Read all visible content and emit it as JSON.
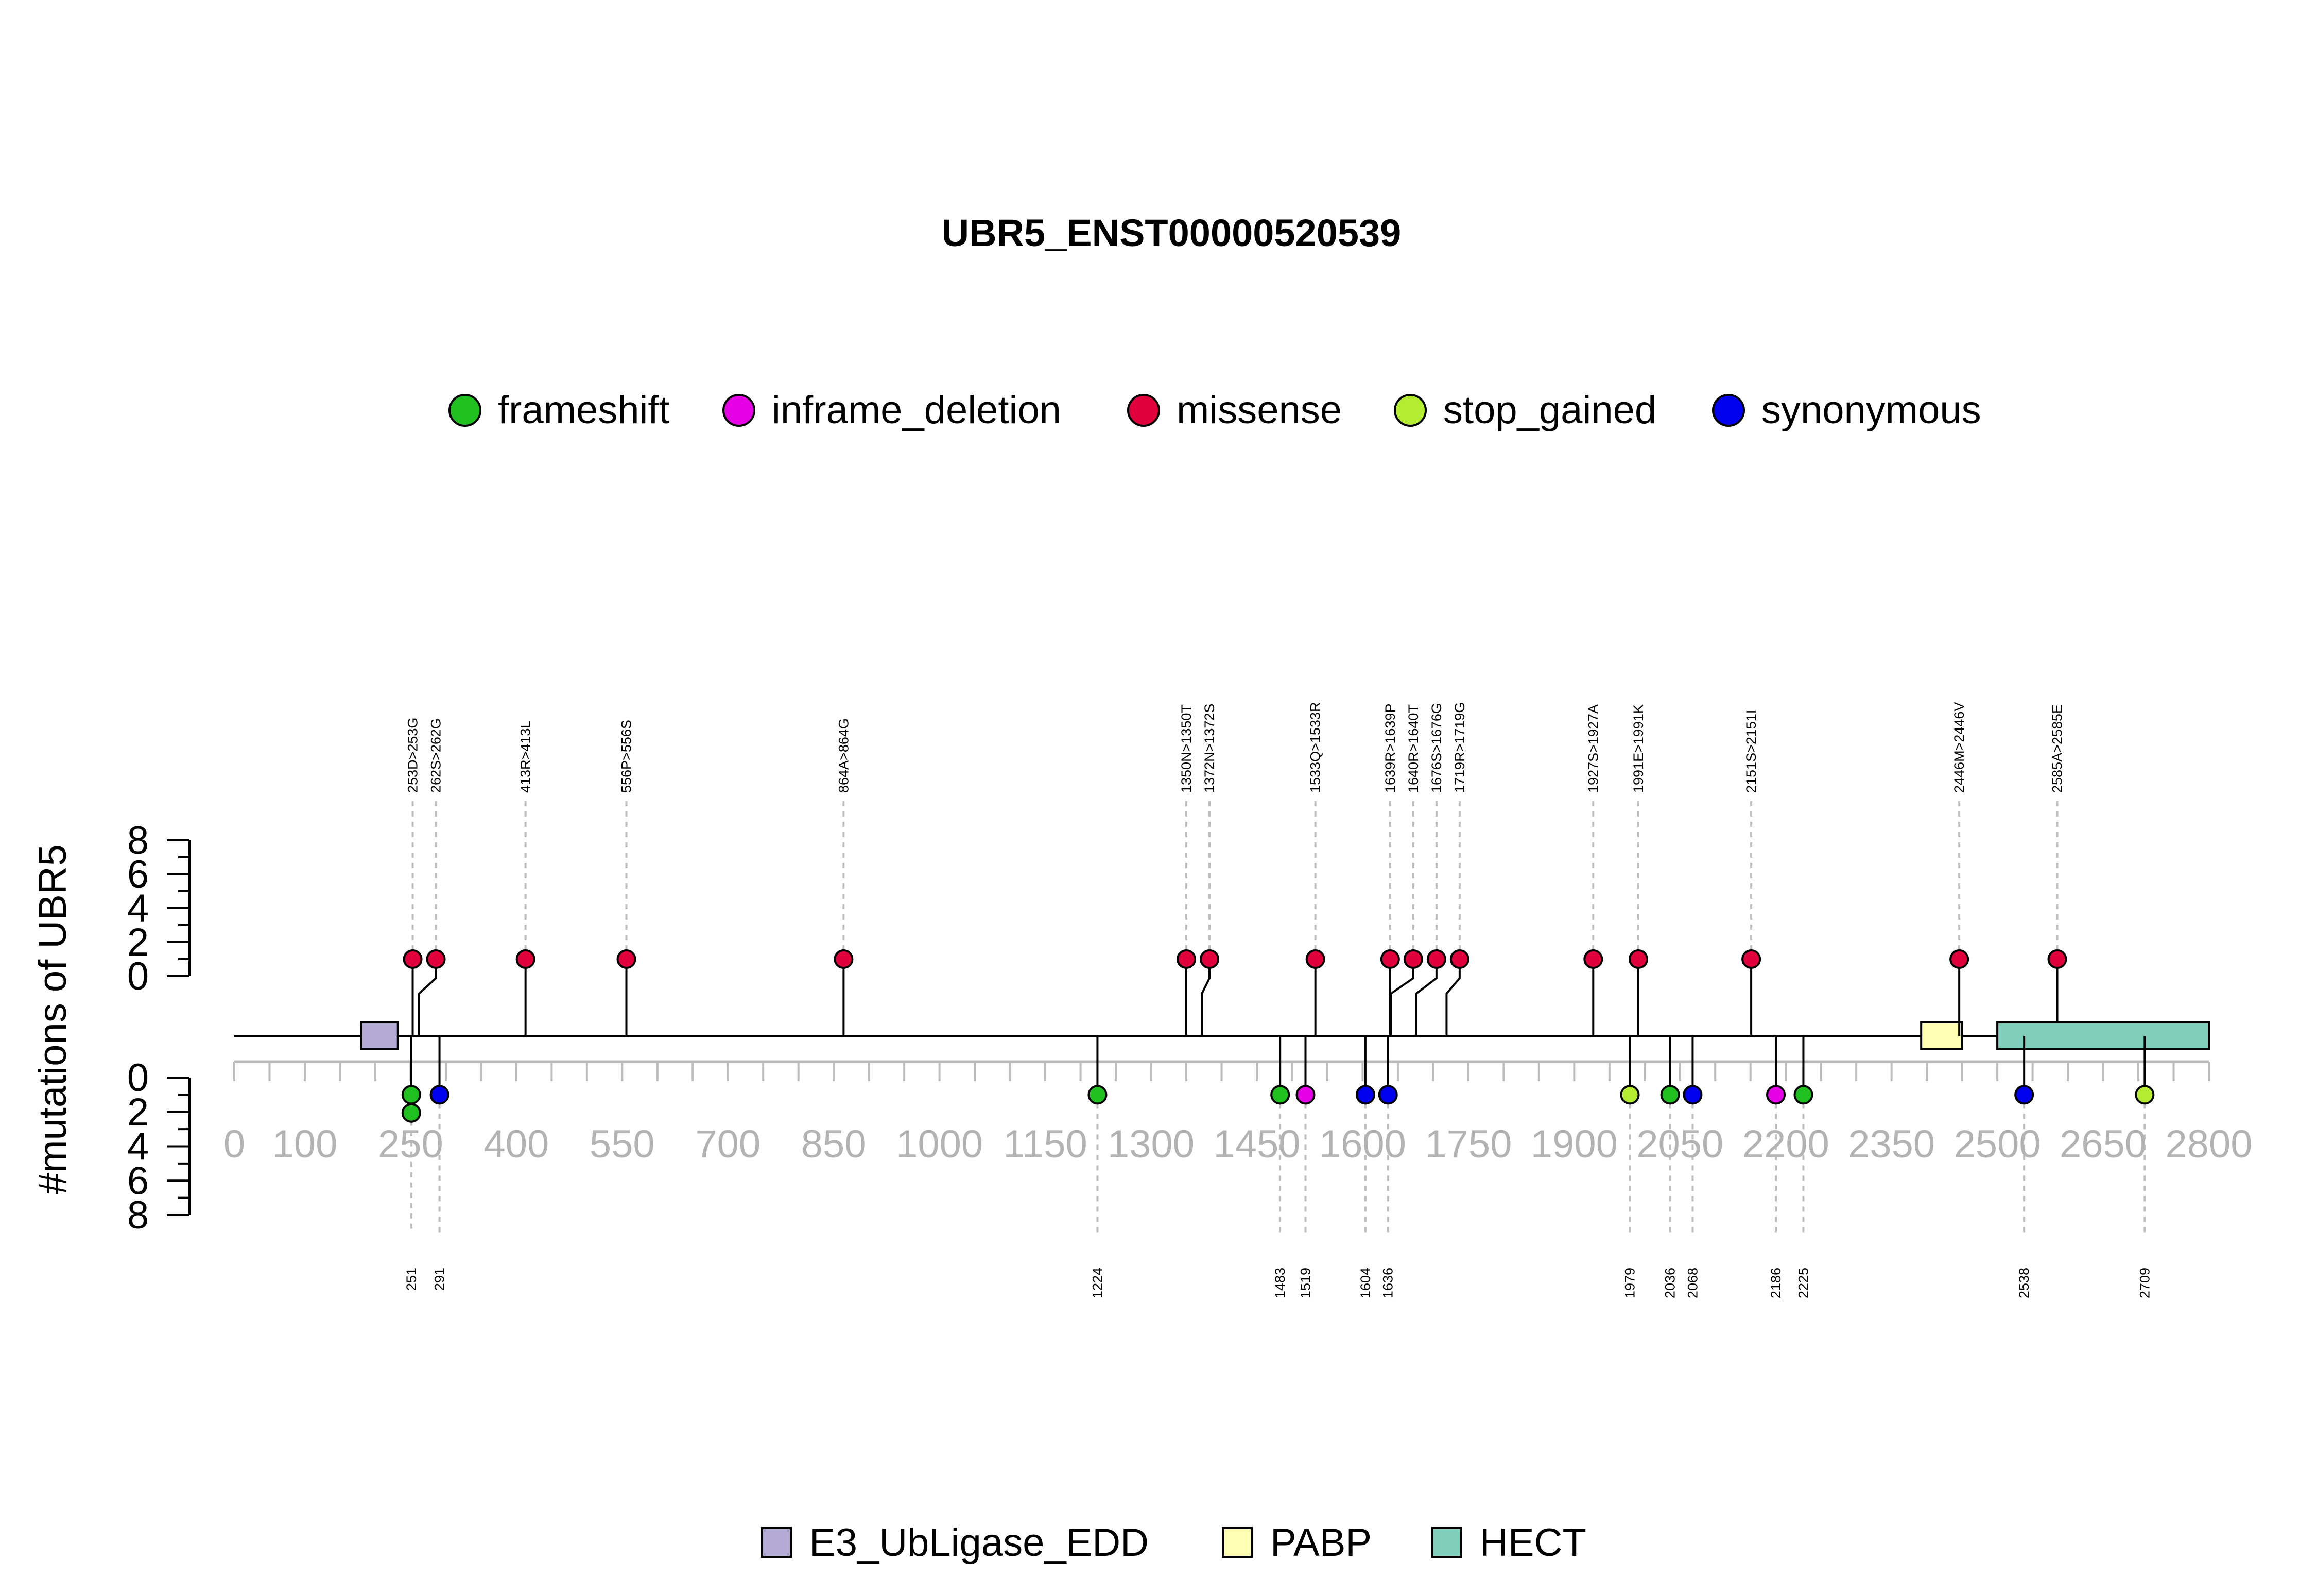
{
  "chart_data": {
    "type": "lollipop",
    "title": "UBR5_ENST00000520539",
    "ylabel": "#mutations of UBR5",
    "xlim": [
      0,
      2800
    ],
    "x_ticks": [
      0,
      100,
      250,
      400,
      550,
      700,
      850,
      1000,
      1150,
      1300,
      1450,
      1600,
      1750,
      1900,
      2050,
      2200,
      2350,
      2500,
      2650,
      2800
    ],
    "y_ticks": [
      0,
      2,
      4,
      6,
      8
    ],
    "ylim": [
      0,
      8
    ],
    "mutation_types": [
      {
        "name": "frameshift",
        "color": "#1fc01f"
      },
      {
        "name": "inframe_deletion",
        "color": "#e600e6"
      },
      {
        "name": "missense",
        "color": "#e0003c"
      },
      {
        "name": "stop_gained",
        "color": "#b4ec32"
      },
      {
        "name": "synonymous",
        "color": "#0000ee"
      }
    ],
    "upper_mutations": [
      {
        "label": "253D>253G",
        "position": 253,
        "count": 1,
        "type": "missense"
      },
      {
        "label": "262S>262G",
        "position": 262,
        "count": 1,
        "type": "missense"
      },
      {
        "label": "413R>413L",
        "position": 413,
        "count": 1,
        "type": "missense"
      },
      {
        "label": "556P>556S",
        "position": 556,
        "count": 1,
        "type": "missense"
      },
      {
        "label": "864A>864G",
        "position": 864,
        "count": 1,
        "type": "missense"
      },
      {
        "label": "1350N>1350T",
        "position": 1350,
        "count": 1,
        "type": "missense"
      },
      {
        "label": "1372N>1372S",
        "position": 1372,
        "count": 1,
        "type": "missense"
      },
      {
        "label": "1533Q>1533R",
        "position": 1533,
        "count": 1,
        "type": "missense"
      },
      {
        "label": "1639R>1639P",
        "position": 1639,
        "count": 1,
        "type": "missense"
      },
      {
        "label": "1640R>1640T",
        "position": 1640,
        "count": 1,
        "type": "missense"
      },
      {
        "label": "1676S>1676G",
        "position": 1676,
        "count": 1,
        "type": "missense"
      },
      {
        "label": "1719R>1719G",
        "position": 1719,
        "count": 1,
        "type": "missense"
      },
      {
        "label": "1927S>1927A",
        "position": 1927,
        "count": 1,
        "type": "missense"
      },
      {
        "label": "1991E>1991K",
        "position": 1991,
        "count": 1,
        "type": "missense"
      },
      {
        "label": "2151S>2151I",
        "position": 2151,
        "count": 1,
        "type": "missense"
      },
      {
        "label": "2446M>2446V",
        "position": 2446,
        "count": 1,
        "type": "missense"
      },
      {
        "label": "2585A>2585E",
        "position": 2585,
        "count": 1,
        "type": "missense"
      }
    ],
    "lower_mutations": [
      {
        "label": "251",
        "position": 251,
        "count": 2,
        "type": "frameshift"
      },
      {
        "label": "291",
        "position": 291,
        "count": 1,
        "type": "synonymous"
      },
      {
        "label": "1224",
        "position": 1224,
        "count": 1,
        "type": "frameshift"
      },
      {
        "label": "1483",
        "position": 1483,
        "count": 1,
        "type": "frameshift"
      },
      {
        "label": "1519",
        "position": 1519,
        "count": 1,
        "type": "inframe_deletion"
      },
      {
        "label": "1604",
        "position": 1604,
        "count": 1,
        "type": "synonymous"
      },
      {
        "label": "1636",
        "position": 1636,
        "count": 1,
        "type": "synonymous"
      },
      {
        "label": "1979",
        "position": 1979,
        "count": 1,
        "type": "stop_gained"
      },
      {
        "label": "2036",
        "position": 2036,
        "count": 1,
        "type": "frameshift"
      },
      {
        "label": "2068",
        "position": 2068,
        "count": 1,
        "type": "synonymous"
      },
      {
        "label": "2186",
        "position": 2186,
        "count": 1,
        "type": "inframe_deletion"
      },
      {
        "label": "2225",
        "position": 2225,
        "count": 1,
        "type": "frameshift"
      },
      {
        "label": "2538",
        "position": 2538,
        "count": 1,
        "type": "synonymous"
      },
      {
        "label": "2709",
        "position": 2709,
        "count": 1,
        "type": "stop_gained"
      }
    ],
    "domains": [
      {
        "name": "E3_UbLigase_EDD",
        "start": 180,
        "end": 232,
        "color": "#b3aad6"
      },
      {
        "name": "PABP",
        "start": 2392,
        "end": 2450,
        "color": "#ffffb3"
      },
      {
        "name": "HECT",
        "start": 2500,
        "end": 2800,
        "color": "#7fcdbb"
      }
    ]
  }
}
